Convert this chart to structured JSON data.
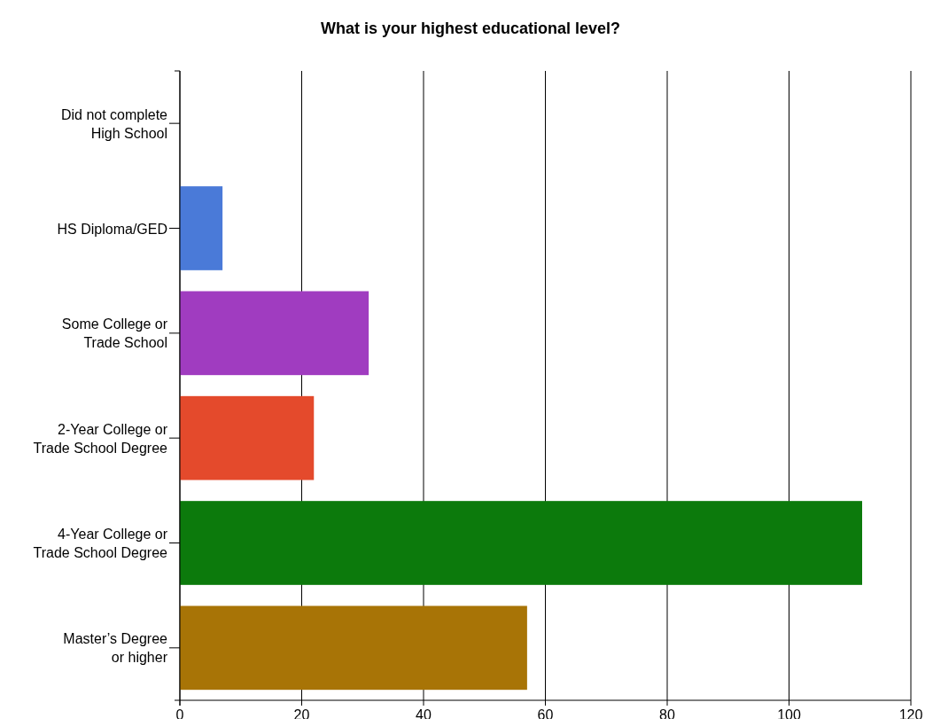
{
  "chart_data": {
    "type": "bar",
    "orientation": "horizontal",
    "title": "What is your highest educational level?",
    "categories": [
      "Did not complete High School",
      "HS Diploma/GED",
      "Some College or Trade School",
      "2-Year College or Trade School Degree",
      "4-Year College or Trade School Degree",
      "Master’s Degree or higher"
    ],
    "values": [
      0,
      7,
      31,
      22,
      112,
      57
    ],
    "colors": [
      "#4a7ad8",
      "#4a7ad8",
      "#a03cc0",
      "#e44a2c",
      "#0c7a0c",
      "#a87406"
    ],
    "xlim": [
      0,
      120
    ],
    "xticks": [
      0,
      20,
      40,
      60,
      80,
      100,
      120
    ],
    "grid": "x"
  }
}
